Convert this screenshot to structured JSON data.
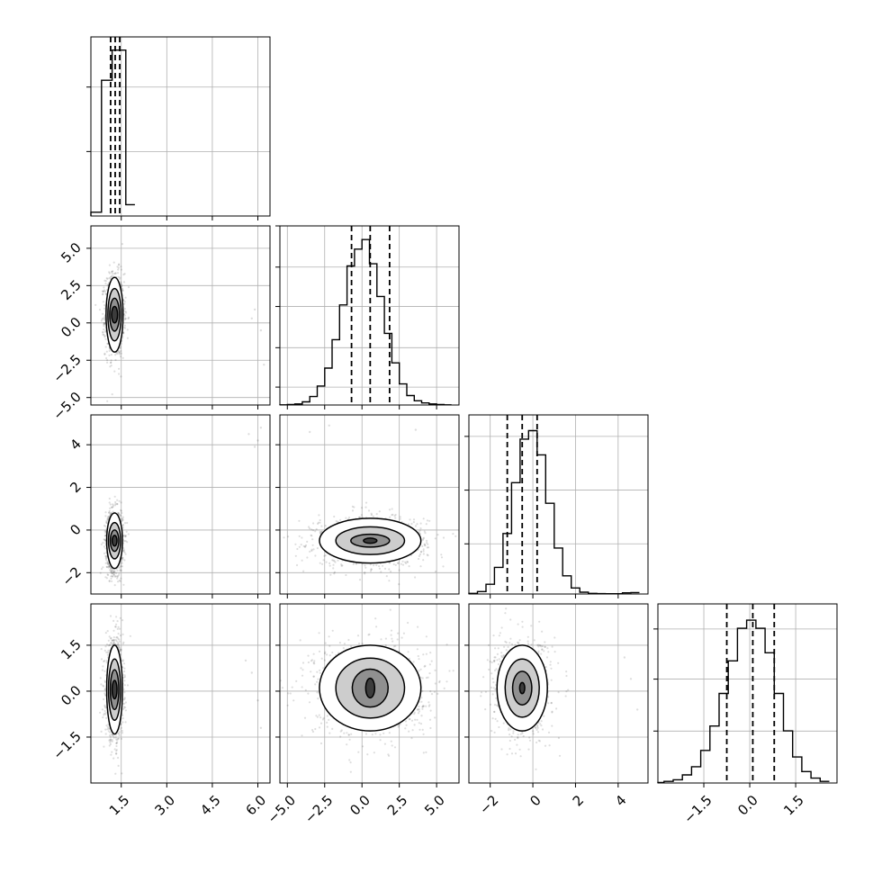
{
  "chart_data": {
    "type": "corner",
    "grid": true,
    "dims": [
      {
        "range": [
          0.5,
          6.4
        ],
        "ticks": [
          1.5,
          3.0,
          4.5,
          6.0
        ],
        "tick_labels": [
          "1.5",
          "3.0",
          "4.5",
          "6.0"
        ],
        "quantiles": [
          1.15,
          1.3,
          1.45
        ]
      },
      {
        "range": [
          -5.5,
          6.5
        ],
        "ticks": [
          -5.0,
          -2.5,
          0.0,
          2.5,
          5.0
        ],
        "tick_labels": [
          "−5.0",
          "−2.5",
          "0.0",
          "2.5",
          "5.0"
        ],
        "quantiles": [
          -0.7,
          0.55,
          1.85
        ]
      },
      {
        "range": [
          -3.0,
          5.4
        ],
        "ticks": [
          -2,
          0,
          2,
          4
        ],
        "tick_labels": [
          "−2",
          "0",
          "2",
          "4"
        ],
        "quantiles": [
          -1.2,
          -0.5,
          0.2
        ]
      },
      {
        "range": [
          -3.0,
          2.85
        ],
        "ticks": [
          -1.5,
          0.0,
          1.5
        ],
        "tick_labels": [
          "−1.5",
          "0.0",
          "1.5"
        ],
        "quantiles": [
          -0.75,
          0.1,
          0.8
        ]
      }
    ],
    "histograms": [
      {
        "edges": [
          0.5,
          0.85,
          1.0,
          1.2,
          1.4,
          1.65,
          1.95
        ],
        "counts": [
          2,
          72,
          72,
          88,
          88,
          6
        ],
        "ymax": 95
      },
      {
        "edges": [
          -5.5,
          -5.0,
          -4.5,
          -4.0,
          -3.5,
          -3.0,
          -2.5,
          -2.0,
          -1.5,
          -1.0,
          -0.5,
          0.0,
          0.5,
          1.0,
          1.5,
          2.0,
          2.5,
          3.0,
          3.5,
          4.0,
          4.5,
          5.0,
          5.5,
          6.0
        ],
        "counts": [
          0.2,
          0.5,
          1,
          3,
          8,
          18,
          35,
          62,
          95,
          132,
          148,
          157,
          134,
          103,
          68,
          40,
          20,
          9,
          4,
          2,
          1,
          0.5,
          0.2
        ],
        "ymax": 170
      },
      {
        "edges": [
          -3.0,
          -2.6,
          -2.2,
          -1.8,
          -1.4,
          -1.0,
          -0.6,
          -0.2,
          0.2,
          0.6,
          1.0,
          1.4,
          1.8,
          2.2,
          2.6,
          3.0,
          3.4,
          3.8,
          4.2,
          4.6,
          5.0
        ],
        "counts": [
          0.5,
          2,
          8,
          22,
          50,
          92,
          128,
          135,
          115,
          75,
          38,
          15,
          5,
          1.5,
          0.5,
          0.3,
          0.2,
          0.2,
          1,
          1.2
        ],
        "ymax": 148
      },
      {
        "edges": [
          -3.0,
          -2.8,
          -2.5,
          -2.2,
          -1.9,
          -1.6,
          -1.3,
          -1.0,
          -0.7,
          -0.4,
          -0.1,
          0.2,
          0.5,
          0.8,
          1.1,
          1.4,
          1.7,
          2.0,
          2.3,
          2.6
        ],
        "counts": [
          0.3,
          1,
          2,
          5,
          10,
          20,
          35,
          55,
          75,
          95,
          100,
          95,
          80,
          55,
          32,
          16,
          7,
          3,
          1
        ],
        "ymax": 110
      }
    ],
    "pairs": [
      {
        "x_dim": 0,
        "y_dim": 1,
        "center": [
          1.28,
          0.55
        ],
        "contour_halfwidths": [
          [
            0.1,
            0.55
          ],
          [
            0.16,
            1.1
          ],
          [
            0.22,
            1.75
          ],
          [
            0.28,
            2.5
          ]
        ],
        "outliers": [
          [
            5.8,
            0.3
          ],
          [
            6.1,
            -0.5
          ],
          [
            6.2,
            -2.8
          ],
          [
            5.9,
            0.9
          ]
        ]
      },
      {
        "x_dim": 0,
        "y_dim": 2,
        "center": [
          1.28,
          -0.5
        ],
        "contour_halfwidths": [
          [
            0.08,
            0.25
          ],
          [
            0.14,
            0.5
          ],
          [
            0.2,
            0.85
          ],
          [
            0.26,
            1.3
          ]
        ],
        "outliers": [
          [
            5.7,
            4.5
          ],
          [
            6.0,
            4.2
          ],
          [
            6.1,
            4.8
          ],
          [
            5.9,
            3.9
          ]
        ]
      },
      {
        "x_dim": 0,
        "y_dim": 3,
        "center": [
          1.28,
          0.05
        ],
        "contour_halfwidths": [
          [
            0.08,
            0.3
          ],
          [
            0.14,
            0.65
          ],
          [
            0.2,
            1.0
          ],
          [
            0.26,
            1.45
          ]
        ],
        "outliers": [
          [
            5.8,
            0.6
          ],
          [
            6.0,
            -0.3
          ],
          [
            6.1,
            -1.2
          ],
          [
            5.6,
            1.0
          ]
        ]
      },
      {
        "x_dim": 1,
        "y_dim": 2,
        "center": [
          0.55,
          -0.5
        ],
        "contour_halfwidths": [
          [
            0.45,
            0.12
          ],
          [
            1.3,
            0.3
          ],
          [
            2.3,
            0.65
          ],
          [
            3.4,
            1.05
          ]
        ],
        "outliers": [
          [
            -3.5,
            4.6
          ],
          [
            -2.2,
            4.9
          ],
          [
            3.6,
            4.7
          ]
        ]
      },
      {
        "x_dim": 1,
        "y_dim": 3,
        "center": [
          0.55,
          0.1
        ],
        "contour_halfwidths": [
          [
            0.3,
            0.32
          ],
          [
            1.2,
            0.62
          ],
          [
            2.3,
            0.98
          ],
          [
            3.4,
            1.4
          ]
        ],
        "outliers": [
          [
            -3.2,
            0.9
          ],
          [
            4.0,
            -0.8
          ]
        ]
      },
      {
        "x_dim": 2,
        "y_dim": 3,
        "center": [
          -0.5,
          0.1
        ],
        "contour_halfwidths": [
          [
            0.12,
            0.18
          ],
          [
            0.45,
            0.55
          ],
          [
            0.8,
            0.95
          ],
          [
            1.18,
            1.4
          ]
        ],
        "outliers": [
          [
            4.6,
            0.4
          ],
          [
            4.9,
            -0.6
          ],
          [
            4.3,
            1.1
          ]
        ]
      }
    ]
  }
}
